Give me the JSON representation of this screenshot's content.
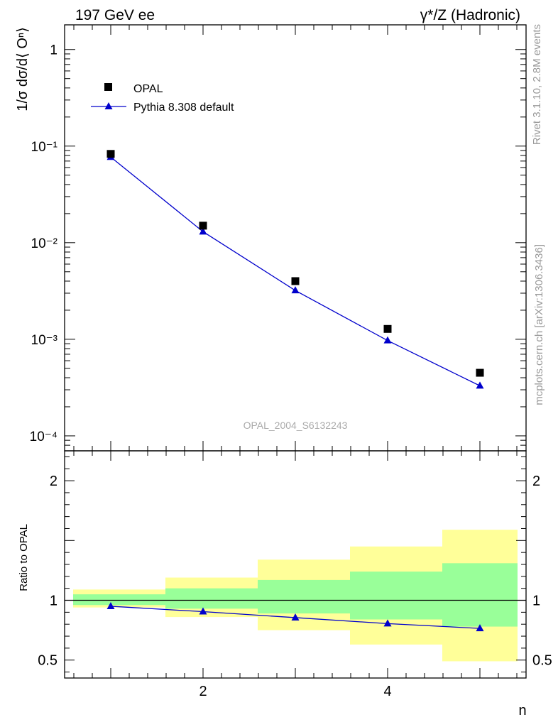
{
  "header": {
    "left": "197 GeV ee",
    "right": "γ*/Z (Hadronic)"
  },
  "side_labels": {
    "rivet": "Rivet 3.1.10,  2.8M events",
    "mcplots": "mcplots.cern.ch [arXiv:1306.3436]"
  },
  "watermark": "OPAL_2004_S6132243",
  "chart_data": [
    {
      "type": "scatter",
      "yscale": "log",
      "ylabel": "1/σ dσ/d⟨ Oⁿ⟩",
      "xlim": [
        0.5,
        5.5
      ],
      "ylim": [
        7e-05,
        1.8
      ],
      "y_ticks": [
        "1",
        "10⁻¹",
        "10⁻²",
        "10⁻³",
        "10⁻⁴"
      ],
      "legend_position": "top-left",
      "x": [
        1,
        2,
        3,
        4,
        5
      ],
      "series": [
        {
          "name": "OPAL",
          "marker": "square",
          "color": "#000000",
          "values": [
            0.083,
            0.015,
            0.004,
            0.00128,
            0.00045
          ]
        },
        {
          "name": "Pythia 8.308 default",
          "marker": "triangle",
          "line": true,
          "color": "#0000cc",
          "values": [
            0.077,
            0.013,
            0.0032,
            0.00097,
            0.00033
          ]
        }
      ]
    },
    {
      "type": "line",
      "ylabel": "Ratio to OPAL",
      "xlabel": "n",
      "xlim": [
        0.5,
        5.5
      ],
      "ylim": [
        0.35,
        2.25
      ],
      "x_ticks": [
        "2",
        "4"
      ],
      "y_ticks": [
        "0.5",
        "1",
        "2"
      ],
      "reference_line": 1,
      "bands": {
        "x_edges": [
          [
            0.5,
            1.5
          ],
          [
            1.5,
            2.5
          ],
          [
            2.5,
            3.5
          ],
          [
            3.5,
            4.5
          ],
          [
            4.5,
            5.5
          ]
        ],
        "green": [
          [
            0.96,
            1.05
          ],
          [
            0.93,
            1.1
          ],
          [
            0.89,
            1.17
          ],
          [
            0.84,
            1.24
          ],
          [
            0.78,
            1.31
          ]
        ],
        "yellow": [
          [
            0.94,
            1.09
          ],
          [
            0.86,
            1.19
          ],
          [
            0.75,
            1.34
          ],
          [
            0.63,
            1.45
          ],
          [
            0.49,
            1.59
          ]
        ],
        "green_color": "#99ff99",
        "yellow_color": "#ffff99"
      },
      "series": [
        {
          "name": "Pythia 8.308 default",
          "marker": "triangle",
          "color": "#0000cc",
          "x": [
            1,
            2,
            3,
            4,
            5
          ],
          "values": [
            0.95,
            0.905,
            0.855,
            0.805,
            0.765
          ]
        }
      ]
    }
  ]
}
